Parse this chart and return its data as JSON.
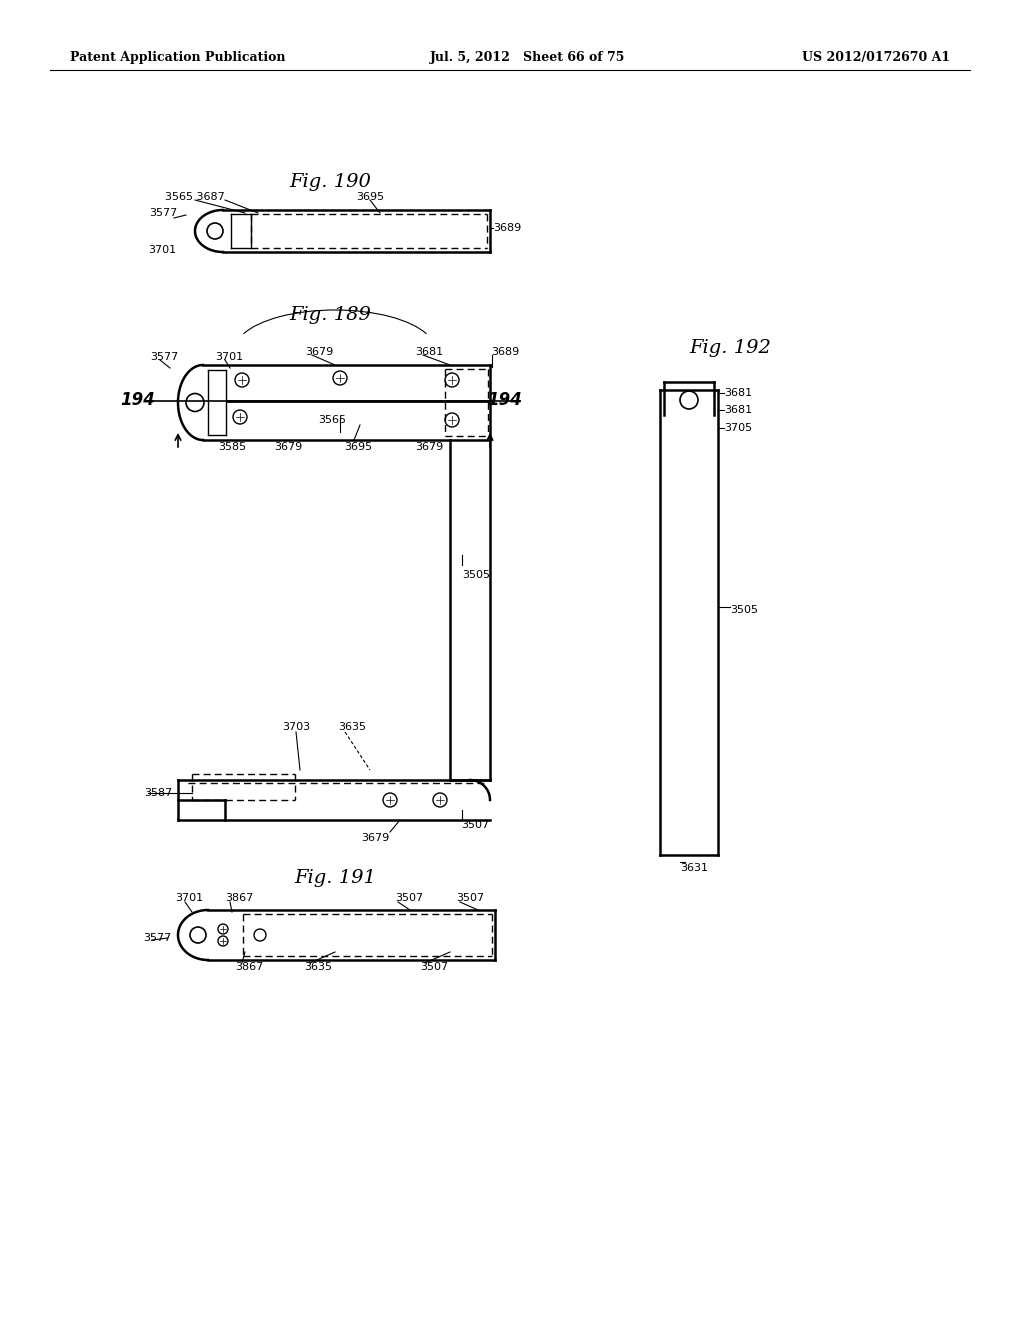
{
  "bg_color": "#ffffff",
  "header_left": "Patent Application Publication",
  "header_mid": "Jul. 5, 2012   Sheet 66 of 75",
  "header_right": "US 2012/0172670 A1"
}
